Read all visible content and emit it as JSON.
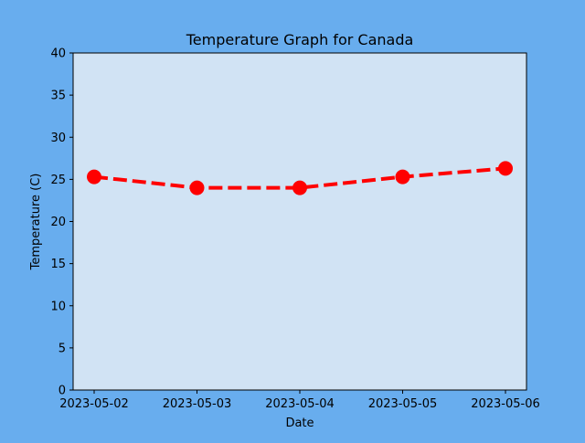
{
  "chart_data": {
    "type": "line",
    "title": "Temperature Graph for Canada",
    "xlabel": "Date",
    "ylabel": "Temperature (C)",
    "x": [
      "2023-05-02",
      "2023-05-03",
      "2023-05-04",
      "2023-05-05",
      "2023-05-06"
    ],
    "series": [
      {
        "values": [
          25.3,
          24.0,
          24.0,
          25.3,
          26.3
        ]
      }
    ],
    "ylim": [
      0,
      40
    ],
    "yticks": [
      0,
      5,
      10,
      15,
      20,
      25,
      30,
      35,
      40
    ],
    "grid": false,
    "legend": "none",
    "line_style": "dashed",
    "marker": "circle",
    "colors": {
      "figure_background": "#68adee",
      "plot_background": "#d1e3f4",
      "line": "#ff0000",
      "marker": "#ff0000",
      "axes": "#000000"
    }
  }
}
